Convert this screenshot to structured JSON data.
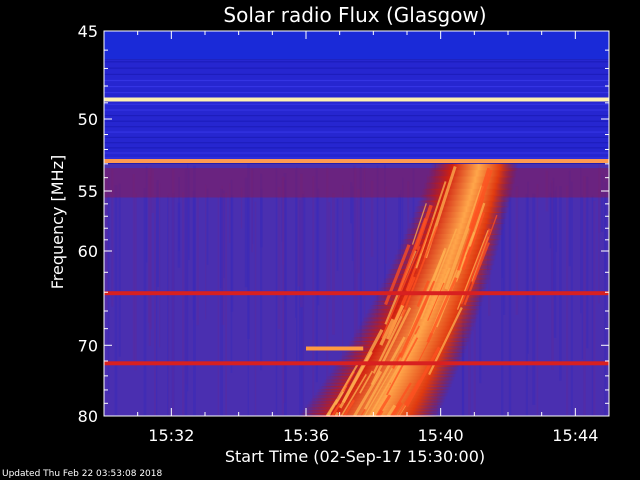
{
  "chart_data": {
    "type": "heatmap",
    "title": "Solar radio Flux (Glasgow)",
    "xlabel": "Start Time (02-Sep-17 15:30:00)",
    "ylabel": "Frequency [MHz]",
    "x_unit": "minutes after 15:30:00",
    "xlim": [
      0,
      15
    ],
    "ylim": [
      45,
      80
    ],
    "y_axis_inverted": true,
    "x_ticks": [
      {
        "value": 2,
        "label": "15:32"
      },
      {
        "value": 6,
        "label": "15:36"
      },
      {
        "value": 10,
        "label": "15:40"
      },
      {
        "value": 14,
        "label": "15:44"
      }
    ],
    "y_ticks": [
      {
        "value": 45,
        "label": "45"
      },
      {
        "value": 50,
        "label": "50"
      },
      {
        "value": 55,
        "label": "55"
      },
      {
        "value": 60,
        "label": "60"
      },
      {
        "value": 70,
        "label": "70"
      },
      {
        "value": 80,
        "label": "80"
      }
    ],
    "background_bands": [
      {
        "from": 45,
        "to": 46.5,
        "level": "high-blue"
      },
      {
        "from": 46.5,
        "to": 53,
        "level": "blue"
      },
      {
        "from": 53,
        "to": 80,
        "level": "purple"
      }
    ],
    "interference_lines": [
      {
        "freq": 48.8,
        "color": "#fff2b0"
      },
      {
        "freq": 52.8,
        "color": "#ff9a50"
      },
      {
        "freq": 64.1,
        "color": "#d82020"
      },
      {
        "freq": 72.3,
        "color": "#d82020"
      }
    ],
    "burst": {
      "description_type": "type II radio burst drifting from high to low frequency",
      "start_freq": 53,
      "end_freq": 80,
      "start_time_min": 7.2,
      "end_time_min": 12.5,
      "peak_color": "#ffb040"
    },
    "colors": {
      "background": "#000000",
      "axis": "#ffffff",
      "low": "#3a1fb0",
      "mid": "#c01818",
      "high": "#ffa64a"
    }
  },
  "footer": {
    "updated_text": "Updated Thu Feb 22 03:53:08 2018"
  }
}
